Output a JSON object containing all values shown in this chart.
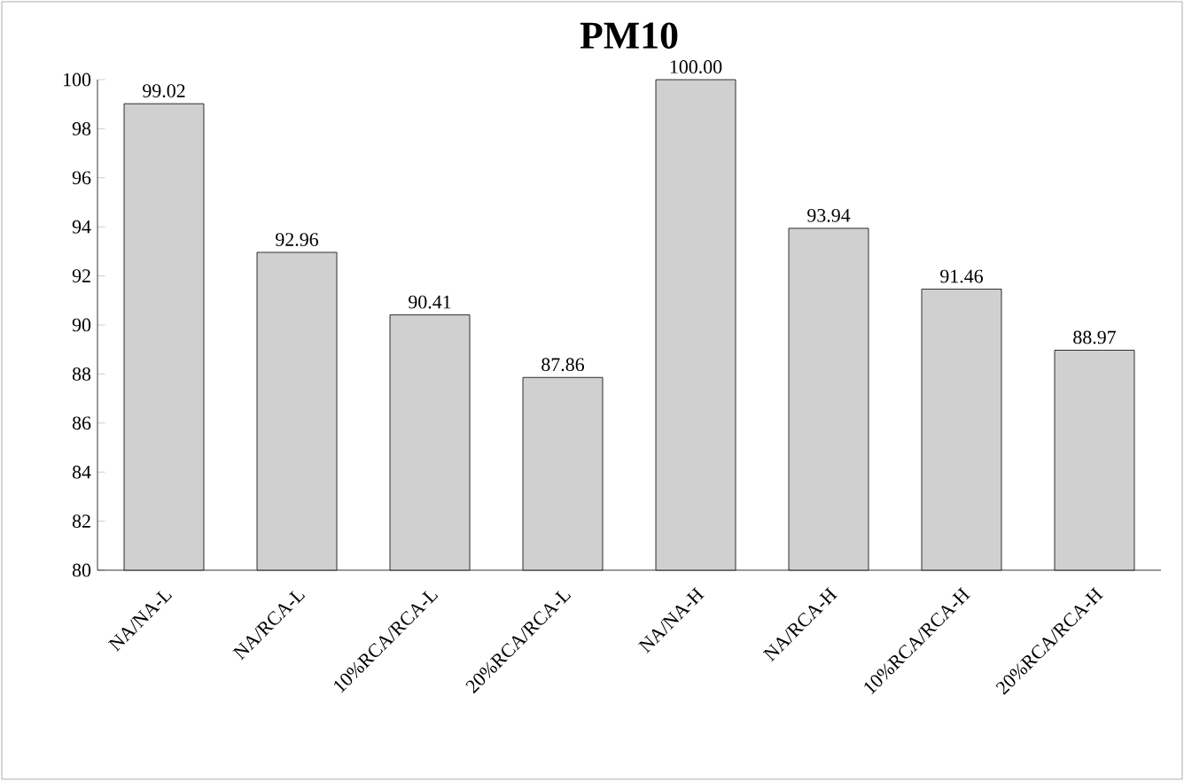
{
  "chart_data": {
    "type": "bar",
    "title": "PM10",
    "categories": [
      "NA/NA-L",
      "NA/RCA-L",
      "10%RCA/RCA-L",
      "20%RCA/RCA-L",
      "NA/NA-H",
      "NA/RCA-H",
      "10%RCA/RCA-H",
      "20%RCA/RCA-H"
    ],
    "values": [
      99.02,
      92.96,
      90.41,
      87.86,
      100.0,
      93.94,
      91.46,
      88.97
    ],
    "value_labels": [
      "99.02",
      "92.96",
      "90.41",
      "87.86",
      "100.00",
      "93.94",
      "91.46",
      "88.97"
    ],
    "color": "#d0d0d0",
    "ylim": [
      80,
      100
    ],
    "yticks": [
      80,
      82,
      84,
      86,
      88,
      90,
      92,
      94,
      96,
      98,
      100
    ],
    "grid": false
  }
}
